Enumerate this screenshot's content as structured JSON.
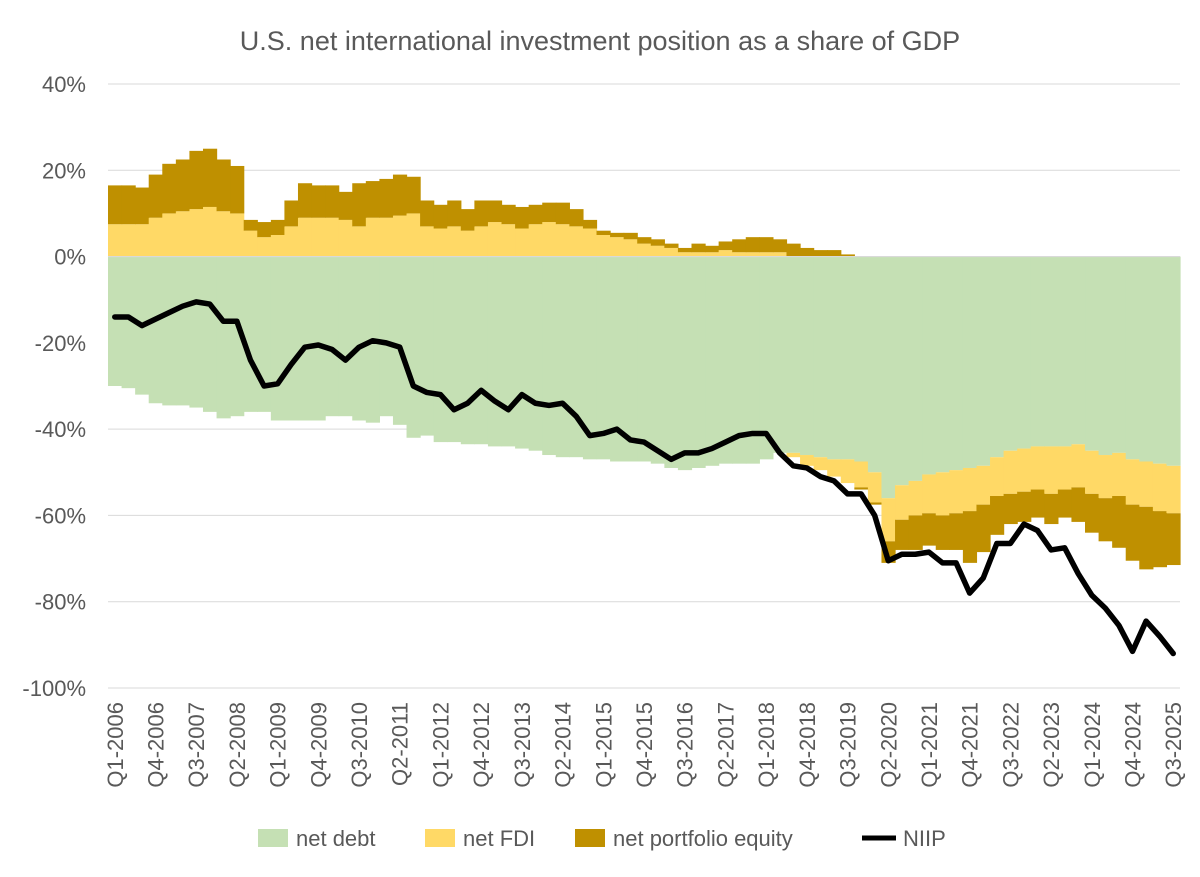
{
  "chart_data": {
    "type": "area",
    "title": "U.S. net international investment position as a share of GDP",
    "xlabel": "",
    "ylabel": "",
    "ylim": [
      -100,
      40
    ],
    "yticks": [
      40,
      20,
      0,
      -20,
      -40,
      -60,
      -80,
      -100
    ],
    "ytick_labels": [
      "40%",
      "20%",
      "0%",
      "-20%",
      "-40%",
      "-60%",
      "-80%",
      "-100%"
    ],
    "grid": true,
    "legend_position": "bottom",
    "tick_labels": [
      "Q1-2006",
      "Q4-2006",
      "Q3-2007",
      "Q2-2008",
      "Q1-2009",
      "Q4-2009",
      "Q3-2010",
      "Q2-2011",
      "Q1-2012",
      "Q4-2012",
      "Q3-2013",
      "Q2-2014",
      "Q1-2015",
      "Q4-2015",
      "Q3-2016",
      "Q2-2017",
      "Q1-2018",
      "Q4-2018",
      "Q3-2019",
      "Q2-2020",
      "Q1-2021",
      "Q4-2021",
      "Q3-2022",
      "Q2-2023",
      "Q1-2024",
      "Q4-2024",
      "Q3-2025"
    ],
    "quarters": [
      "Q1-2006",
      "Q2-2006",
      "Q3-2006",
      "Q4-2006",
      "Q1-2007",
      "Q2-2007",
      "Q3-2007",
      "Q4-2007",
      "Q1-2008",
      "Q2-2008",
      "Q3-2008",
      "Q4-2008",
      "Q1-2009",
      "Q2-2009",
      "Q3-2009",
      "Q4-2009",
      "Q1-2010",
      "Q2-2010",
      "Q3-2010",
      "Q4-2010",
      "Q1-2011",
      "Q2-2011",
      "Q3-2011",
      "Q4-2011",
      "Q1-2012",
      "Q2-2012",
      "Q3-2012",
      "Q4-2012",
      "Q1-2013",
      "Q2-2013",
      "Q3-2013",
      "Q4-2013",
      "Q1-2014",
      "Q2-2014",
      "Q3-2014",
      "Q4-2014",
      "Q1-2015",
      "Q2-2015",
      "Q3-2015",
      "Q4-2015",
      "Q1-2016",
      "Q2-2016",
      "Q3-2016",
      "Q4-2016",
      "Q1-2017",
      "Q2-2017",
      "Q3-2017",
      "Q4-2017",
      "Q1-2018",
      "Q2-2018",
      "Q3-2018",
      "Q4-2018",
      "Q1-2019",
      "Q2-2019",
      "Q3-2019",
      "Q4-2019",
      "Q1-2020",
      "Q2-2020",
      "Q3-2020",
      "Q4-2020",
      "Q1-2021",
      "Q2-2021",
      "Q3-2021",
      "Q4-2021",
      "Q1-2022",
      "Q2-2022",
      "Q3-2022",
      "Q4-2022",
      "Q1-2023",
      "Q2-2023",
      "Q3-2023",
      "Q4-2023",
      "Q1-2024",
      "Q2-2024",
      "Q3-2024",
      "Q4-2024",
      "Q1-2025",
      "Q2-2025",
      "Q3-2025"
    ],
    "series": [
      {
        "name": "net debt",
        "kind": "area",
        "color": "#c5e0b4",
        "values": [
          -30,
          -30.5,
          -32,
          -34,
          -34.5,
          -34.5,
          -35,
          -36,
          -37.5,
          -37,
          -36,
          -36,
          -38,
          -38,
          -38,
          -38,
          -37,
          -37,
          -38,
          -38.5,
          -37,
          -39,
          -42,
          -41.5,
          -43,
          -43,
          -43.5,
          -43.5,
          -44,
          -44,
          -44.5,
          -45,
          -46,
          -46.5,
          -46.5,
          -47,
          -47,
          -47.5,
          -47.5,
          -47.5,
          -48,
          -49,
          -49.5,
          -49,
          -48.5,
          -48,
          -48,
          -48,
          -47,
          -45.5,
          -45.5,
          -46,
          -46.5,
          -47,
          -47,
          -47.5,
          -50,
          -56,
          -53,
          -52,
          -50.5,
          -50,
          -49.5,
          -49,
          -48.5,
          -46.5,
          -45,
          -44.5,
          -44,
          -44,
          -44,
          -43.5,
          -45,
          -46,
          -45.5,
          -47,
          -47.5,
          -48,
          -48.5
        ]
      },
      {
        "name": "net FDI",
        "kind": "area",
        "color": "#ffd966",
        "values": [
          7.5,
          7.5,
          7.5,
          9,
          10,
          10.5,
          11,
          11.5,
          10.5,
          10,
          6,
          4.5,
          5,
          7,
          9,
          9,
          9,
          8.5,
          7,
          9,
          9,
          9.5,
          10,
          7,
          6.5,
          7,
          6,
          7,
          8,
          7.5,
          6.5,
          7.5,
          8,
          7.5,
          7,
          6.5,
          5,
          4.5,
          4,
          3,
          2.5,
          2,
          1,
          1,
          1,
          1.5,
          1,
          1,
          1,
          1,
          -1,
          -2.5,
          -3,
          -4,
          -5.5,
          -6,
          -7,
          -10,
          -8,
          -8,
          -9,
          -10,
          -10,
          -10,
          -9,
          -9,
          -10,
          -10,
          -10,
          -11,
          -10,
          -10,
          -10,
          -10,
          -10,
          -10.5,
          -10.5,
          -11,
          -11
        ]
      },
      {
        "name": "net portfolio equity",
        "kind": "area",
        "color": "#bf9000",
        "values": [
          9,
          9,
          8.5,
          10,
          11.5,
          12,
          13.5,
          13.5,
          12,
          11,
          2.5,
          3.5,
          3.5,
          6,
          8,
          7.5,
          7.5,
          6.5,
          10,
          8.5,
          9,
          9.5,
          8.5,
          6,
          5.5,
          6,
          5,
          6,
          5,
          4.5,
          5,
          4.5,
          4.5,
          5,
          4,
          2,
          1,
          1,
          1.5,
          1.5,
          1.5,
          1,
          1,
          2,
          1.5,
          2,
          3,
          3.5,
          3.5,
          3,
          3,
          2,
          1.5,
          1.5,
          0.5,
          -0.5,
          -0.5,
          -5,
          -7,
          -8,
          -7.5,
          -8,
          -8.5,
          -12,
          -11,
          -9,
          -7,
          -7,
          -6.5,
          -7,
          -6.5,
          -8,
          -9,
          -10,
          -12,
          -13,
          -14.5,
          -13,
          -12
        ]
      },
      {
        "name": "NIIP",
        "kind": "line",
        "color": "#000000",
        "values": [
          -14,
          -14,
          -16,
          -14.5,
          -13,
          -11.5,
          -10.5,
          -11,
          -15,
          -15,
          -24,
          -30,
          -29.5,
          -25,
          -21,
          -20.5,
          -21.5,
          -24,
          -21,
          -19.5,
          -20,
          -21,
          -30,
          -31.5,
          -32,
          -35.5,
          -34,
          -31,
          -33.5,
          -35.5,
          -32,
          -34,
          -34.5,
          -34,
          -37,
          -41.5,
          -41,
          -40,
          -42.5,
          -43,
          -45,
          -47,
          -45.5,
          -45.5,
          -44.5,
          -43,
          -41.5,
          -41,
          -41,
          -45.5,
          -48.5,
          -49,
          -51,
          -52,
          -55,
          -55,
          -60,
          -70.5,
          -69,
          -69,
          -68.5,
          -71,
          -71,
          -78,
          -74.5,
          -66.5,
          -66.5,
          -62,
          -63.5,
          -68,
          -67.5,
          -73.5,
          -78.5,
          -81.5,
          -85.5,
          -91.5,
          -84.5,
          -88,
          -92
        ]
      }
    ]
  }
}
